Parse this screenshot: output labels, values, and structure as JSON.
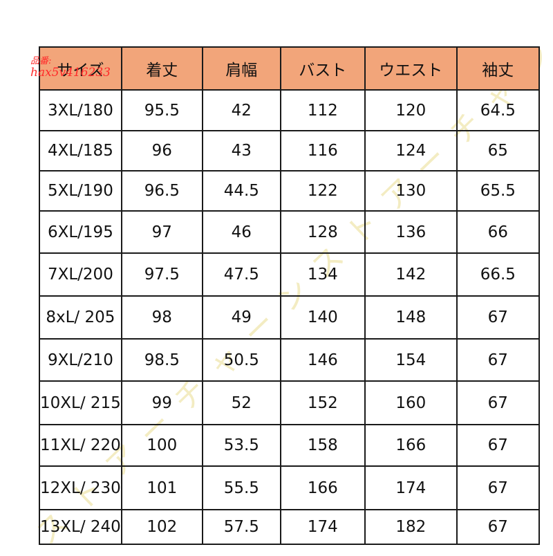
{
  "table": {
    "headers": [
      "サイズ",
      "着丈",
      "肩幅",
      "バスト",
      "ウエスト",
      "袖丈"
    ],
    "rows": [
      [
        "3XL/180",
        "95.5",
        "42",
        "112",
        "120",
        "64.5"
      ],
      [
        "4XL/185",
        "96",
        "43",
        "116",
        "124",
        "65"
      ],
      [
        "5XL/190",
        "96.5",
        "44.5",
        "122",
        "130",
        "65.5"
      ],
      [
        "6XL/195",
        "97",
        "46",
        "128",
        "136",
        "66"
      ],
      [
        "7XL/200",
        "97.5",
        "47.5",
        "134",
        "142",
        "66.5"
      ],
      [
        "8xL/ 205",
        "98",
        "49",
        "140",
        "148",
        "67"
      ],
      [
        "9XL/210",
        "98.5",
        "50.5",
        "146",
        "154",
        "67"
      ],
      [
        "10XL/ 215",
        "99",
        "52",
        "152",
        "160",
        "67"
      ],
      [
        "11XL/ 220",
        "100",
        "53.5",
        "158",
        "166",
        "67"
      ],
      [
        "12XL/ 230",
        "101",
        "55.5",
        "166",
        "174",
        "67"
      ],
      [
        "13XL/ 240",
        "102",
        "57.5",
        "174",
        "182",
        "67"
      ]
    ]
  },
  "watermark": {
    "line1": "品番:",
    "line2": "hax5v416233",
    "diagonal_text": "ストアーチャーンストアーチャンス"
  },
  "colors": {
    "header_bg": "#f2a57a",
    "border": "#1a1a1a",
    "watermark_red": "#ff2a2a",
    "watermark_faint": "#f3ecc2"
  }
}
